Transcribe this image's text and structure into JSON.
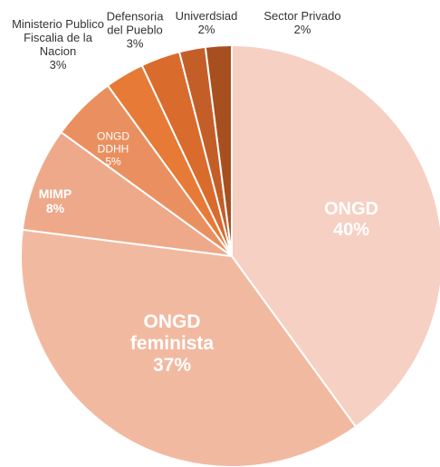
{
  "chart_data": {
    "type": "pie",
    "categories": [
      "ONGD",
      "ONGD feminista",
      "MIMP",
      "ONGD DDHH",
      "Ministerio Publico Fiscalia de la Nacion",
      "Defensoria del Pueblo",
      "Univerdsiad",
      "Sector Privado"
    ],
    "values": [
      40,
      37,
      8,
      5,
      3,
      3,
      2,
      2
    ],
    "value_labels": [
      "40%",
      "37%",
      "8%",
      "5%",
      "3%",
      "3%",
      "2%",
      "2%"
    ],
    "colors": [
      "#f6d0c3",
      "#f2b9a1",
      "#eea98a",
      "#ea9060",
      "#e67a36",
      "#d96b2d",
      "#c45e28",
      "#a84f20"
    ]
  }
}
